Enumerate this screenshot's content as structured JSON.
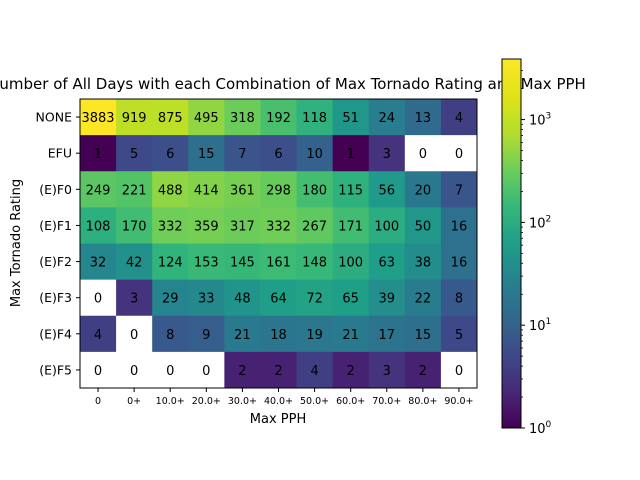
{
  "chart_data": {
    "type": "heatmap",
    "title": "Number of All Days with each Combination of Max Tornado Rating and Max PPH",
    "xlabel": "Max PPH",
    "ylabel": "Max Tornado Rating",
    "x_categories": [
      "0",
      "0+",
      "10.0+",
      "20.0+",
      "30.0+",
      "40.0+",
      "50.0+",
      "60.0+",
      "70.0+",
      "80.0+",
      "90.0+"
    ],
    "y_categories": [
      "NONE",
      "EFU",
      "(E)F0",
      "(E)F1",
      "(E)F2",
      "(E)F3",
      "(E)F4",
      "(E)F5"
    ],
    "values": [
      [
        3883,
        919,
        875,
        495,
        318,
        192,
        118,
        51,
        24,
        13,
        4
      ],
      [
        1,
        5,
        6,
        15,
        7,
        6,
        10,
        1,
        3,
        0,
        0
      ],
      [
        249,
        221,
        488,
        414,
        361,
        298,
        180,
        115,
        56,
        20,
        7
      ],
      [
        108,
        170,
        332,
        359,
        317,
        332,
        267,
        171,
        100,
        50,
        16
      ],
      [
        32,
        42,
        124,
        153,
        145,
        161,
        148,
        100,
        63,
        38,
        16
      ],
      [
        0,
        3,
        29,
        33,
        48,
        64,
        72,
        65,
        39,
        22,
        8
      ],
      [
        4,
        0,
        8,
        9,
        21,
        18,
        19,
        21,
        17,
        15,
        5
      ],
      [
        0,
        0,
        0,
        0,
        2,
        2,
        4,
        2,
        3,
        2,
        0
      ]
    ],
    "colorscale": "viridis",
    "color_scale_type": "log",
    "color_range": [
      1,
      3883
    ],
    "colorbar": {
      "ticks": [
        {
          "base": "10",
          "exp": "0"
        },
        {
          "base": "10",
          "exp": "1"
        },
        {
          "base": "10",
          "exp": "2"
        },
        {
          "base": "10",
          "exp": "3"
        }
      ]
    },
    "zero_cell_color": "#ffffff"
  }
}
